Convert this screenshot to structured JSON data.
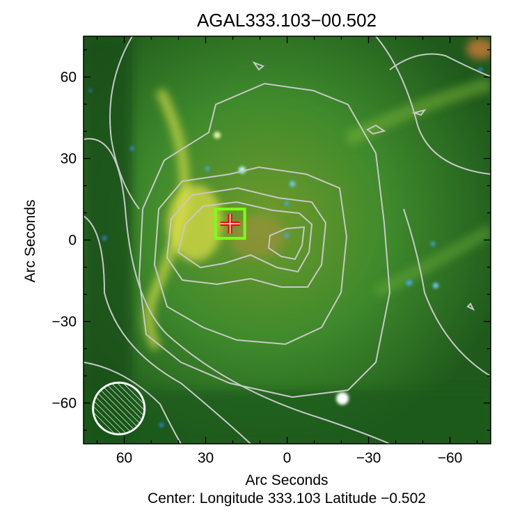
{
  "chart_data": {
    "type": "image",
    "title": "AGAL333.103−00.502",
    "xlabel": "Arc Seconds",
    "ylabel": "Arc Seconds",
    "caption": "Center:  Longitude 333.103 Latitude −0.502",
    "xlim": [
      75,
      -75
    ],
    "ylim": [
      -75,
      75
    ],
    "xticks": [
      60,
      30,
      0,
      -30,
      -60
    ],
    "yticks": [
      60,
      30,
      0,
      -30,
      -60
    ],
    "xtick_labels": [
      "60",
      "30",
      "0",
      "−30",
      "−60"
    ],
    "ytick_labels": [
      "60",
      "30",
      "0",
      "−30",
      "−60"
    ],
    "contour_color": "#c8c8c8",
    "source_marker": {
      "x": 21,
      "y": 6,
      "box_color": "#7cff1a",
      "cross_color": "#ff0000"
    },
    "beam": {
      "x": 62,
      "y": -62,
      "radius": 9.5,
      "color": "#ffffff",
      "hatched": true
    }
  }
}
